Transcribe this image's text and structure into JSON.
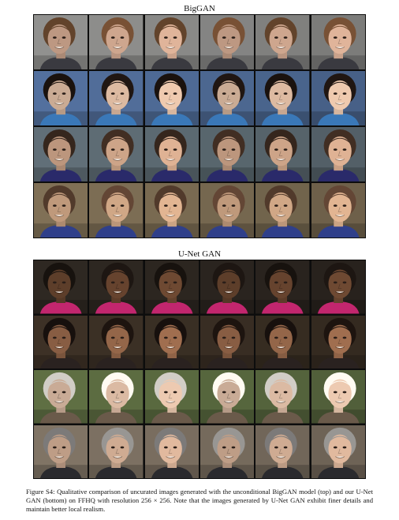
{
  "panels": [
    {
      "title": "BigGAN",
      "rows": [
        {
          "bg": "#8a8a88",
          "skin": "#d7ad94",
          "hair": "#6d4a30",
          "shirt": "#3a3a40"
        },
        {
          "bg": "#4f6b96",
          "skin": "#e6c2a8",
          "hair": "#1d1410",
          "shirt": "#3a78b8"
        },
        {
          "bg": "#5c6a72",
          "skin": "#d6ab8e",
          "hair": "#3b2a20",
          "shirt": "#2a2a6a"
        },
        {
          "bg": "#7a6b52",
          "skin": "#d9ae8c",
          "hair": "#5a4030",
          "shirt": "#2f3f8a"
        }
      ]
    },
    {
      "title": "U-Net GAN",
      "rows": [
        {
          "bg": "#2c2620",
          "skin": "#6a4630",
          "hair": "#1a1410",
          "shirt": "#c2266e"
        },
        {
          "bg": "#3a2f24",
          "skin": "#9a6a4c",
          "hair": "#1a120e",
          "shirt": "#2a2220"
        },
        {
          "bg": "#5a6a40",
          "skin": "#e4c2aa",
          "hair": "#e8e4dc",
          "shirt": "#6a5a4a"
        },
        {
          "bg": "#7a6e60",
          "skin": "#d8b298",
          "hair": "#8a8886",
          "shirt": "#2a2a2e"
        }
      ]
    }
  ],
  "caption": "Figure S4: Qualitative comparison of uncurated images generated with the unconditional BigGAN model (top) and our U-Net GAN (bottom) on FFHQ with resolution 256 × 256. Note that the images generated by U-Net GAN exhibit finer details and maintain better local realism."
}
